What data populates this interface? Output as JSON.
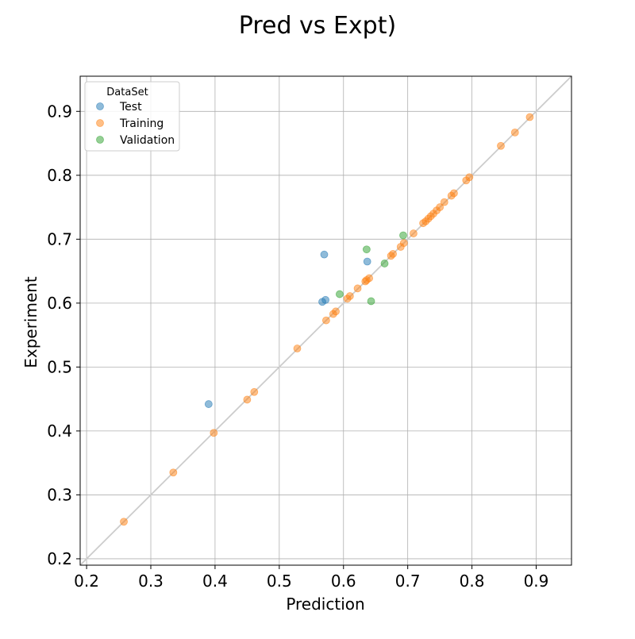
{
  "chart_data": {
    "type": "scatter",
    "title": "Pred vs Expt)",
    "xlabel": "Prediction",
    "ylabel": "Experiment",
    "xlim": [
      0.19,
      0.955
    ],
    "ylim": [
      0.19,
      0.955
    ],
    "xticks": [
      "0.2",
      "0.3",
      "0.4",
      "0.5",
      "0.6",
      "0.7",
      "0.8",
      "0.9"
    ],
    "yticks": [
      "0.2",
      "0.3",
      "0.4",
      "0.5",
      "0.6",
      "0.7",
      "0.8",
      "0.9"
    ],
    "grid": true,
    "identity_line": true,
    "legend": {
      "title": "DataSet",
      "placement": "top-left"
    },
    "series": [
      {
        "name": "Test",
        "color": "#1f77b4",
        "points": [
          [
            0.39,
            0.442
          ],
          [
            0.567,
            0.602
          ],
          [
            0.572,
            0.605
          ],
          [
            0.57,
            0.676
          ],
          [
            0.637,
            0.665
          ]
        ]
      },
      {
        "name": "Training",
        "color": "#ff7f0e",
        "points": [
          [
            0.258,
            0.258
          ],
          [
            0.335,
            0.335
          ],
          [
            0.398,
            0.397
          ],
          [
            0.45,
            0.449
          ],
          [
            0.461,
            0.461
          ],
          [
            0.528,
            0.529
          ],
          [
            0.573,
            0.573
          ],
          [
            0.584,
            0.583
          ],
          [
            0.588,
            0.587
          ],
          [
            0.606,
            0.607
          ],
          [
            0.61,
            0.611
          ],
          [
            0.622,
            0.623
          ],
          [
            0.634,
            0.634
          ],
          [
            0.636,
            0.636
          ],
          [
            0.64,
            0.639
          ],
          [
            0.674,
            0.674
          ],
          [
            0.677,
            0.677
          ],
          [
            0.689,
            0.688
          ],
          [
            0.694,
            0.694
          ],
          [
            0.709,
            0.709
          ],
          [
            0.724,
            0.725
          ],
          [
            0.728,
            0.728
          ],
          [
            0.732,
            0.732
          ],
          [
            0.736,
            0.736
          ],
          [
            0.74,
            0.74
          ],
          [
            0.745,
            0.745
          ],
          [
            0.75,
            0.75
          ],
          [
            0.757,
            0.758
          ],
          [
            0.768,
            0.768
          ],
          [
            0.772,
            0.772
          ],
          [
            0.791,
            0.792
          ],
          [
            0.796,
            0.797
          ],
          [
            0.845,
            0.846
          ],
          [
            0.867,
            0.867
          ],
          [
            0.89,
            0.891
          ]
        ]
      },
      {
        "name": "Validation",
        "color": "#2ca02c",
        "points": [
          [
            0.594,
            0.614
          ],
          [
            0.636,
            0.684
          ],
          [
            0.643,
            0.603
          ],
          [
            0.664,
            0.662
          ],
          [
            0.693,
            0.706
          ]
        ]
      }
    ]
  }
}
